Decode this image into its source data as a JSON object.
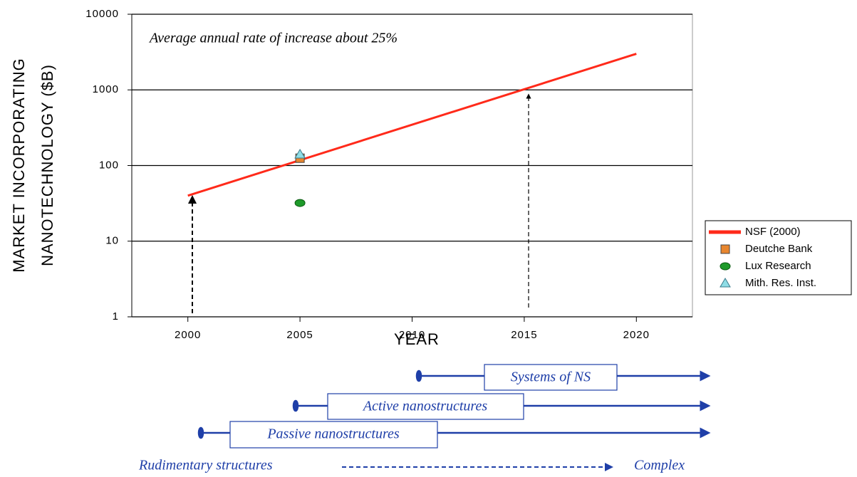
{
  "chart_data": {
    "type": "line",
    "annotation": "Average annual rate of increase about 25%",
    "xlabel": "YEAR",
    "ylabel": [
      "MARKET INCORPORATING",
      "NANOTECHNOLOGY ($B)"
    ],
    "xlim": [
      1997.5,
      2022.5
    ],
    "xticks": [
      2000,
      2005,
      2010,
      2015,
      2020
    ],
    "ylim": [
      1,
      10000
    ],
    "yticks": [
      1,
      10,
      100,
      1000,
      10000
    ],
    "ylog": true,
    "grid": true,
    "legend": "right",
    "series": [
      {
        "name": "NSF (2000)",
        "type": "line",
        "color": "#ff2a1a",
        "x": [
          2000,
          2020
        ],
        "values": [
          40,
          3000
        ]
      },
      {
        "name": "Deutche Bank",
        "type": "scatter",
        "marker": "square",
        "color": "#e8862e",
        "x": [
          2005
        ],
        "values": [
          125
        ]
      },
      {
        "name": "Lux Research",
        "type": "scatter",
        "marker": "circle",
        "color": "#1e9a2a",
        "x": [
          2005
        ],
        "values": [
          32
        ]
      },
      {
        "name": "Mith. Res. Inst.",
        "type": "scatter",
        "marker": "triangle",
        "color": "#8fdde6",
        "x": [
          2005
        ],
        "values": [
          140
        ]
      }
    ],
    "timeline": {
      "bands": [
        "Systems of NS",
        "Active nanostructures",
        "Passive nanostructures"
      ],
      "from": "Rudimentary structures",
      "to": "Complex"
    }
  }
}
